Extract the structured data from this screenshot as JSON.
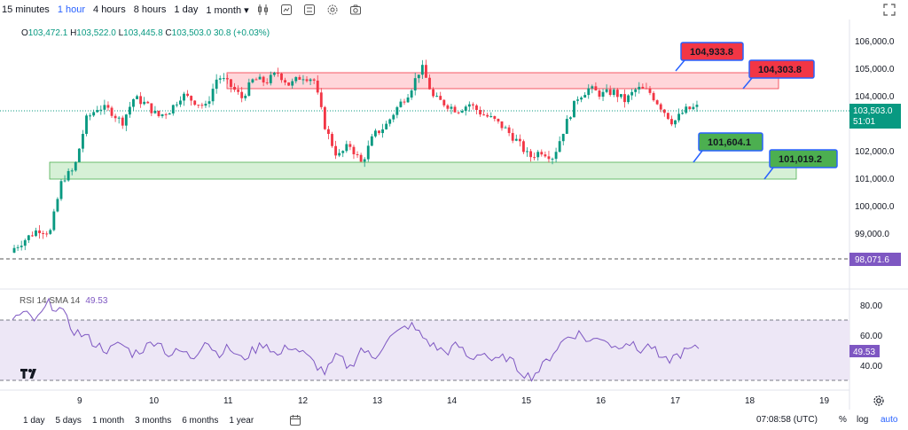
{
  "toolbar": {
    "timeframes": [
      "15 minutes",
      "1 hour",
      "4 hours",
      "8 hours",
      "1 day",
      "1 month"
    ],
    "active_timeframe": "1 hour",
    "icons": [
      "indicators-icon",
      "replay-icon",
      "compare-icon",
      "settings-icon",
      "snapshot-icon"
    ]
  },
  "ohlc": {
    "o_label": "O",
    "o": "103,472.1",
    "h_label": "H",
    "h": "103,522.0",
    "l_label": "L",
    "l": "103,445.8",
    "c_label": "C",
    "c": "103,503.0",
    "change": "30.8 (+0.03%)"
  },
  "price_axis": {
    "ticks": [
      "106,000.0",
      "105,000.0",
      "104,000.0",
      "102,000.0",
      "101,000.0",
      "100,000.0",
      "99,000.0"
    ],
    "current_price": "103,503.0",
    "countdown": "51:01",
    "dashed_level": "98,071.6"
  },
  "annotations": {
    "resistance_top": "104,933.8",
    "resistance_bottom": "104,303.8",
    "support_top": "101,604.1",
    "support_bottom": "101,019.2"
  },
  "rsi": {
    "label": "RSI 14 SMA 14",
    "value": "49.53",
    "ticks": [
      "80.00",
      "60.00",
      "40.00"
    ],
    "current_label": "49.53"
  },
  "time_axis": {
    "ticks": [
      "9",
      "10",
      "11",
      "12",
      "13",
      "14",
      "15",
      "16",
      "17",
      "18",
      "19"
    ]
  },
  "bottom": {
    "ranges": [
      "1 day",
      "5 days",
      "1 month",
      "3 months",
      "6 months",
      "1 year"
    ],
    "clock": "07:08:58 (UTC)",
    "percent": "%",
    "log": "log",
    "auto": "auto"
  },
  "colors": {
    "up": "#089981",
    "down": "#f23645",
    "rsi_line": "#7e57c2",
    "resistance_fill": "#ffd6da",
    "support_fill": "#d6f0d6",
    "red_label": "#f23645",
    "green_label": "#4caf50",
    "label_border": "#2962ff"
  },
  "chart_data": {
    "type": "candlestick",
    "x": [
      "9",
      "10",
      "11",
      "12",
      "13",
      "14",
      "15",
      "16",
      "17"
    ],
    "ylim": [
      97800,
      106300
    ],
    "close_path": [
      99000,
      99300,
      99600,
      99500,
      101200,
      101500,
      103100,
      103500,
      103400,
      103000,
      103800,
      103600,
      103200,
      103400,
      103900,
      103700,
      103500,
      104500,
      104200,
      103800,
      104400,
      104300,
      104600,
      104200,
      104500,
      104400,
      102800,
      101900,
      102300,
      101700,
      102600,
      102900,
      103500,
      104000,
      104800,
      103800,
      103600,
      103400,
      103600,
      103300,
      103100,
      102800,
      102400,
      101900,
      102100,
      101900,
      102900,
      103800,
      104100,
      103900,
      104000,
      103700,
      104100,
      104000,
      103500,
      103000,
      103400,
      103500
    ],
    "rsi_ylim": [
      25,
      85
    ],
    "rsi_path": [
      70,
      73,
      68,
      80,
      76,
      62,
      58,
      52,
      48,
      53,
      46,
      50,
      56,
      45,
      48,
      43,
      56,
      46,
      50,
      42,
      48,
      54,
      44,
      52,
      47,
      40,
      33,
      45,
      36,
      50,
      42,
      55,
      60,
      66,
      58,
      51,
      47,
      52,
      42,
      48,
      40,
      44,
      36,
      30,
      37,
      48,
      57,
      60,
      54,
      58,
      50,
      55,
      48,
      52,
      40,
      44,
      48,
      49.5
    ]
  }
}
